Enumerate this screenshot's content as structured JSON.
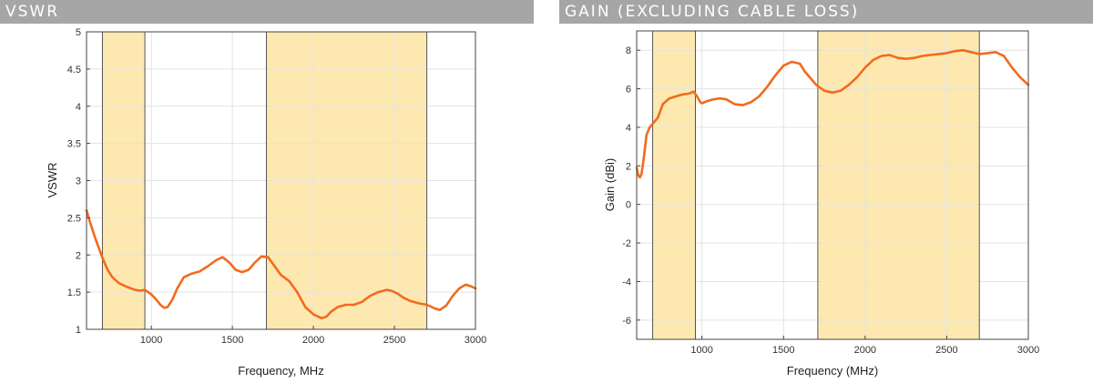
{
  "panels": [
    {
      "header": "VSWR",
      "chart_data": {
        "type": "line",
        "title": "",
        "xlabel": "Frequency, MHz",
        "ylabel": "VSWR",
        "xlim": [
          600,
          3000
        ],
        "ylim": [
          1,
          5
        ],
        "xticks": [
          1000,
          1500,
          2000,
          2500,
          3000
        ],
        "yticks": [
          1,
          1.5,
          2,
          2.5,
          3,
          3.5,
          4,
          4.5,
          5
        ],
        "grid": true,
        "highlight_bands": [
          [
            698,
            960
          ],
          [
            1710,
            2700
          ]
        ],
        "band_color": "#fde9b0",
        "series": [
          {
            "color": "#f26b1d",
            "x": [
              600,
              620,
              650,
              680,
              700,
              730,
              760,
              800,
              850,
              900,
              930,
              960,
              980,
              1000,
              1030,
              1060,
              1080,
              1100,
              1130,
              1160,
              1200,
              1250,
              1300,
              1350,
              1400,
              1440,
              1480,
              1520,
              1560,
              1600,
              1640,
              1680,
              1720,
              1760,
              1800,
              1850,
              1900,
              1950,
              2000,
              2050,
              2080,
              2110,
              2150,
              2200,
              2250,
              2300,
              2350,
              2400,
              2450,
              2480,
              2520,
              2560,
              2600,
              2650,
              2700,
              2750,
              2780,
              2820,
              2860,
              2900,
              2940,
              2970,
              3000
            ],
            "y": [
              2.6,
              2.45,
              2.25,
              2.07,
              1.95,
              1.8,
              1.7,
              1.62,
              1.57,
              1.53,
              1.52,
              1.53,
              1.5,
              1.47,
              1.4,
              1.32,
              1.29,
              1.3,
              1.4,
              1.55,
              1.7,
              1.75,
              1.78,
              1.85,
              1.93,
              1.97,
              1.9,
              1.8,
              1.77,
              1.8,
              1.9,
              1.98,
              1.97,
              1.85,
              1.73,
              1.65,
              1.5,
              1.3,
              1.2,
              1.15,
              1.17,
              1.24,
              1.3,
              1.33,
              1.33,
              1.37,
              1.45,
              1.5,
              1.53,
              1.52,
              1.48,
              1.42,
              1.38,
              1.35,
              1.33,
              1.28,
              1.26,
              1.32,
              1.45,
              1.55,
              1.6,
              1.58,
              1.55
            ]
          }
        ]
      }
    },
    {
      "header": "GAIN (EXCLUDING CABLE LOSS)",
      "chart_data": {
        "type": "line",
        "title": "",
        "xlabel": "Frequency (MHz)",
        "ylabel": "Gain (dBi)",
        "xlim": [
          600,
          3000
        ],
        "ylim": [
          -7,
          9
        ],
        "xticks": [
          1000,
          1500,
          2000,
          2500,
          3000
        ],
        "yticks": [
          -6,
          -4,
          -2,
          0,
          2,
          4,
          6,
          8
        ],
        "grid": true,
        "highlight_bands": [
          [
            698,
            960
          ],
          [
            1710,
            2700
          ]
        ],
        "band_color": "#fde9b0",
        "series": [
          {
            "color": "#f26b1d",
            "x": [
              600,
              610,
              620,
              630,
              645,
              660,
              680,
              700,
              730,
              760,
              800,
              840,
              880,
              920,
              950,
              970,
              990,
              1000,
              1030,
              1070,
              1110,
              1150,
              1200,
              1250,
              1300,
              1350,
              1400,
              1450,
              1500,
              1550,
              1600,
              1630,
              1660,
              1700,
              1750,
              1800,
              1850,
              1900,
              1950,
              2000,
              2050,
              2100,
              2150,
              2200,
              2250,
              2300,
              2350,
              2400,
              2450,
              2500,
              2550,
              2600,
              2650,
              2700,
              2750,
              2800,
              2850,
              2900,
              2950,
              3000
            ],
            "y": [
              1.9,
              1.5,
              1.4,
              1.6,
              2.5,
              3.6,
              4.0,
              4.2,
              4.5,
              5.2,
              5.5,
              5.6,
              5.7,
              5.75,
              5.85,
              5.6,
              5.3,
              5.25,
              5.35,
              5.45,
              5.5,
              5.45,
              5.2,
              5.15,
              5.3,
              5.6,
              6.1,
              6.7,
              7.2,
              7.4,
              7.3,
              6.9,
              6.6,
              6.2,
              5.9,
              5.8,
              5.9,
              6.2,
              6.6,
              7.1,
              7.5,
              7.7,
              7.75,
              7.6,
              7.55,
              7.6,
              7.7,
              7.75,
              7.8,
              7.85,
              7.95,
              8.0,
              7.9,
              7.8,
              7.85,
              7.9,
              7.7,
              7.1,
              6.6,
              6.2
            ]
          }
        ]
      }
    }
  ]
}
